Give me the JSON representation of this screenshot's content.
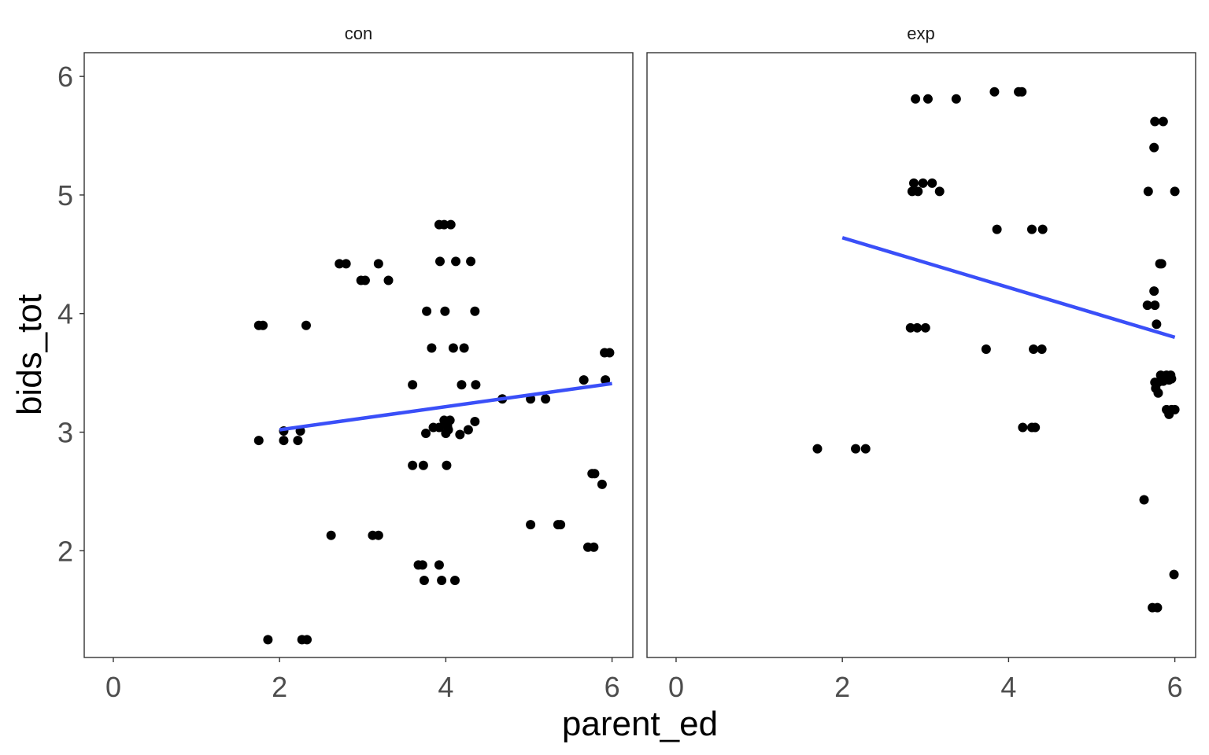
{
  "chart_data": {
    "type": "scatter",
    "xlabel": "parent_ed",
    "ylabel": "bids_tot",
    "xlim": [
      -0.35,
      6.25
    ],
    "ylim": [
      1.1,
      6.2
    ],
    "x_ticks": [
      "0",
      "2",
      "4",
      "6"
    ],
    "y_ticks": [
      "2",
      "3",
      "4",
      "5",
      "6"
    ],
    "grid": false,
    "point_color": "#000000",
    "line_color": "#3A4FF8",
    "panels": [
      {
        "label": "con",
        "points": [
          [
            1.75,
            3.9
          ],
          [
            1.8,
            3.9
          ],
          [
            1.75,
            2.93
          ],
          [
            2.05,
            2.93
          ],
          [
            2.05,
            3.01
          ],
          [
            2.22,
            2.93
          ],
          [
            2.25,
            3.01
          ],
          [
            2.32,
            3.9
          ],
          [
            1.86,
            1.25
          ],
          [
            2.27,
            1.25
          ],
          [
            2.33,
            1.25
          ],
          [
            2.62,
            2.13
          ],
          [
            2.72,
            4.42
          ],
          [
            2.8,
            4.42
          ],
          [
            2.98,
            4.28
          ],
          [
            3.03,
            4.28
          ],
          [
            3.19,
            4.42
          ],
          [
            3.31,
            4.28
          ],
          [
            3.12,
            2.13
          ],
          [
            3.19,
            2.13
          ],
          [
            3.6,
            3.4
          ],
          [
            3.6,
            2.72
          ],
          [
            3.73,
            2.72
          ],
          [
            3.67,
            1.88
          ],
          [
            3.72,
            1.88
          ],
          [
            3.92,
            1.88
          ],
          [
            3.74,
            1.75
          ],
          [
            3.95,
            1.75
          ],
          [
            4.11,
            1.75
          ],
          [
            3.76,
            2.99
          ],
          [
            3.85,
            3.04
          ],
          [
            3.92,
            3.04
          ],
          [
            3.77,
            4.02
          ],
          [
            3.83,
            3.71
          ],
          [
            3.92,
            4.75
          ],
          [
            3.98,
            4.75
          ],
          [
            4.06,
            4.75
          ],
          [
            3.93,
            4.44
          ],
          [
            3.99,
            4.02
          ],
          [
            3.98,
            3.1
          ],
          [
            4.02,
            3.05
          ],
          [
            4.05,
            3.1
          ],
          [
            4.0,
            2.99
          ],
          [
            4.03,
            3.02
          ],
          [
            4.01,
            2.72
          ],
          [
            4.09,
            3.71
          ],
          [
            4.12,
            4.44
          ],
          [
            4.17,
            2.98
          ],
          [
            4.19,
            3.4
          ],
          [
            4.22,
            3.71
          ],
          [
            4.27,
            3.02
          ],
          [
            4.3,
            4.44
          ],
          [
            4.35,
            4.02
          ],
          [
            4.35,
            3.09
          ],
          [
            4.36,
            3.4
          ],
          [
            4.68,
            3.28
          ],
          [
            5.02,
            3.28
          ],
          [
            5.2,
            3.28
          ],
          [
            5.02,
            2.22
          ],
          [
            5.35,
            2.22
          ],
          [
            5.38,
            2.22
          ],
          [
            5.66,
            3.44
          ],
          [
            5.71,
            2.03
          ],
          [
            5.78,
            2.03
          ],
          [
            5.76,
            2.65
          ],
          [
            5.79,
            2.65
          ],
          [
            5.88,
            2.56
          ],
          [
            5.91,
            3.67
          ],
          [
            5.97,
            3.67
          ],
          [
            5.92,
            3.44
          ]
        ],
        "fit": {
          "x": [
            2.0,
            6.0
          ],
          "y": [
            3.02,
            3.41
          ]
        }
      },
      {
        "label": "exp",
        "points": [
          [
            1.7,
            2.86
          ],
          [
            2.16,
            2.86
          ],
          [
            2.28,
            2.86
          ],
          [
            2.82,
            3.88
          ],
          [
            2.9,
            3.88
          ],
          [
            3.0,
            3.88
          ],
          [
            2.84,
            5.03
          ],
          [
            2.91,
            5.03
          ],
          [
            2.86,
            5.1
          ],
          [
            2.97,
            5.1
          ],
          [
            3.08,
            5.1
          ],
          [
            3.17,
            5.03
          ],
          [
            2.88,
            5.81
          ],
          [
            3.03,
            5.81
          ],
          [
            3.37,
            5.81
          ],
          [
            3.83,
            5.87
          ],
          [
            4.12,
            5.87
          ],
          [
            4.16,
            5.87
          ],
          [
            3.86,
            4.71
          ],
          [
            4.28,
            4.71
          ],
          [
            4.41,
            4.71
          ],
          [
            3.73,
            3.7
          ],
          [
            4.3,
            3.7
          ],
          [
            4.4,
            3.7
          ],
          [
            4.17,
            3.04
          ],
          [
            4.28,
            3.04
          ],
          [
            4.32,
            3.04
          ],
          [
            5.63,
            2.43
          ],
          [
            5.67,
            4.07
          ],
          [
            5.68,
            5.03
          ],
          [
            5.73,
            1.52
          ],
          [
            5.79,
            1.52
          ],
          [
            5.75,
            5.4
          ],
          [
            5.76,
            5.62
          ],
          [
            5.86,
            5.62
          ],
          [
            5.75,
            4.19
          ],
          [
            5.76,
            4.07
          ],
          [
            5.78,
            3.91
          ],
          [
            5.82,
            4.42
          ],
          [
            5.84,
            4.42
          ],
          [
            5.76,
            3.42
          ],
          [
            5.8,
            3.42
          ],
          [
            5.77,
            3.37
          ],
          [
            5.8,
            3.33
          ],
          [
            5.83,
            3.48
          ],
          [
            5.86,
            3.43
          ],
          [
            5.9,
            3.48
          ],
          [
            5.93,
            3.44
          ],
          [
            5.95,
            3.48
          ],
          [
            5.96,
            3.45
          ],
          [
            5.9,
            3.19
          ],
          [
            5.93,
            3.15
          ],
          [
            5.96,
            3.19
          ],
          [
            6.0,
            3.19
          ],
          [
            6.0,
            5.03
          ],
          [
            5.99,
            1.8
          ]
        ],
        "fit": {
          "x": [
            2.0,
            6.0
          ],
          "y": [
            4.64,
            3.8
          ]
        }
      }
    ]
  }
}
